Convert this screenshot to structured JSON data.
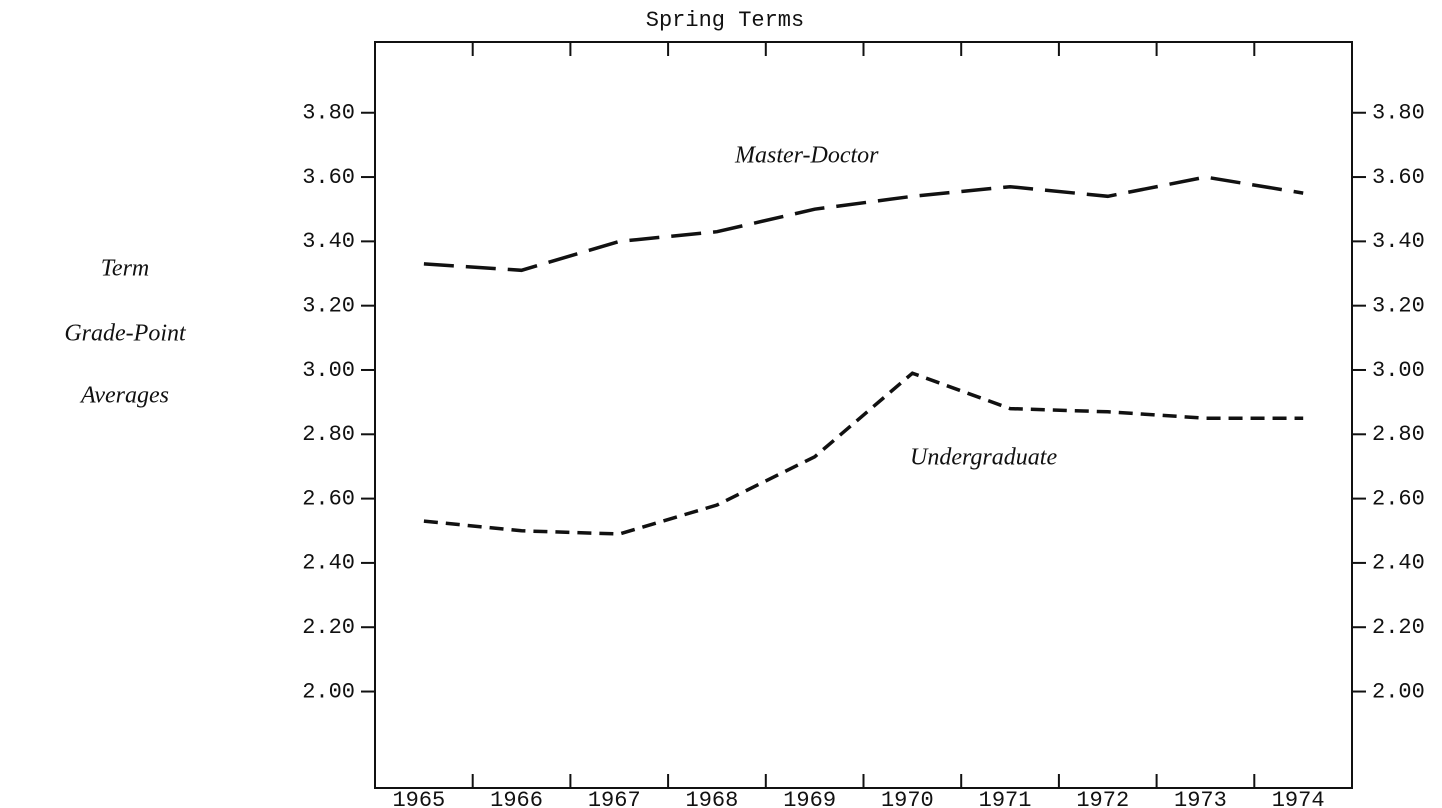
{
  "chart_data": {
    "type": "line",
    "title": "Spring Terms",
    "ylabel": [
      "Term",
      "Grade-Point",
      "Averages"
    ],
    "categories": [
      "1965",
      "1966",
      "1967",
      "1968",
      "1969",
      "1970",
      "1971",
      "1972",
      "1973",
      "1974"
    ],
    "series": [
      {
        "name": "Master-Doctor",
        "color": "#111111",
        "line_style": "long-dash",
        "values": [
          3.33,
          3.31,
          3.4,
          3.43,
          3.5,
          3.54,
          3.57,
          3.54,
          3.6,
          3.55
        ]
      },
      {
        "name": "Undergraduate",
        "color": "#111111",
        "line_style": "short-dash",
        "values": [
          2.53,
          2.5,
          2.49,
          2.58,
          2.73,
          2.99,
          2.88,
          2.87,
          2.85,
          2.85
        ]
      }
    ],
    "ylim": [
      1.7,
      4.02
    ],
    "yticks": [
      {
        "value": 2.0,
        "label": "2.00"
      },
      {
        "value": 2.2,
        "label": "2.20"
      },
      {
        "value": 2.4,
        "label": "2.40"
      },
      {
        "value": 2.6,
        "label": "2.60"
      },
      {
        "value": 2.8,
        "label": "2.80"
      },
      {
        "value": 3.0,
        "label": "3.00"
      },
      {
        "value": 3.2,
        "label": "3.20"
      },
      {
        "value": 3.4,
        "label": "3.40"
      },
      {
        "value": 3.6,
        "label": "3.60"
      },
      {
        "value": 3.8,
        "label": "3.80"
      }
    ],
    "y2lim": [
      1.7,
      4.02
    ],
    "y2ticks": [
      {
        "value": 2.0,
        "label": "2.00"
      },
      {
        "value": 2.2,
        "label": "2.20"
      },
      {
        "value": 2.4,
        "label": "2.40"
      },
      {
        "value": 2.6,
        "label": "2.60"
      },
      {
        "value": 2.8,
        "label": "2.80"
      },
      {
        "value": 3.0,
        "label": "3.00"
      },
      {
        "value": 3.2,
        "label": "3.20"
      },
      {
        "value": 3.4,
        "label": "3.40"
      },
      {
        "value": 3.6,
        "label": "3.60"
      },
      {
        "value": 3.8,
        "label": "3.80"
      }
    ]
  }
}
